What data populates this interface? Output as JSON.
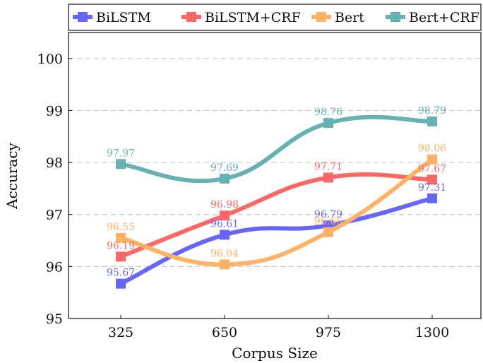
{
  "chart_data": {
    "type": "line",
    "xlabel": "Corpus Size",
    "ylabel": "Accuracy",
    "categories": [
      "325",
      "650",
      "975",
      "1300"
    ],
    "ylim": [
      95,
      100.5
    ],
    "yticks": [
      "95",
      "96",
      "97",
      "98",
      "99",
      "100"
    ],
    "grid": "horizontal dashed",
    "legend_position": "top",
    "series": [
      {
        "name": "BiLSTM",
        "color": "#6666ff",
        "values": [
          95.67,
          96.61,
          96.79,
          97.31
        ],
        "labels": [
          "95.67",
          "96.61",
          "96.79",
          "97.31"
        ]
      },
      {
        "name": "BiLSTM+CRF",
        "color": "#ff6666",
        "values": [
          96.19,
          96.98,
          97.71,
          97.67
        ],
        "labels": [
          "96.19",
          "96.98",
          "97.71",
          "97.67"
        ]
      },
      {
        "name": "Bert",
        "color": "#ffb266",
        "values": [
          96.55,
          96.04,
          96.66,
          98.06
        ],
        "labels": [
          "96.55",
          "96.04",
          "96.66",
          "98.06"
        ]
      },
      {
        "name": "Bert+CRF",
        "color": "#66b2b2",
        "values": [
          97.97,
          97.69,
          98.76,
          98.79
        ],
        "labels": [
          "97.97",
          "97.69",
          "98.76",
          "98.79"
        ]
      }
    ]
  }
}
